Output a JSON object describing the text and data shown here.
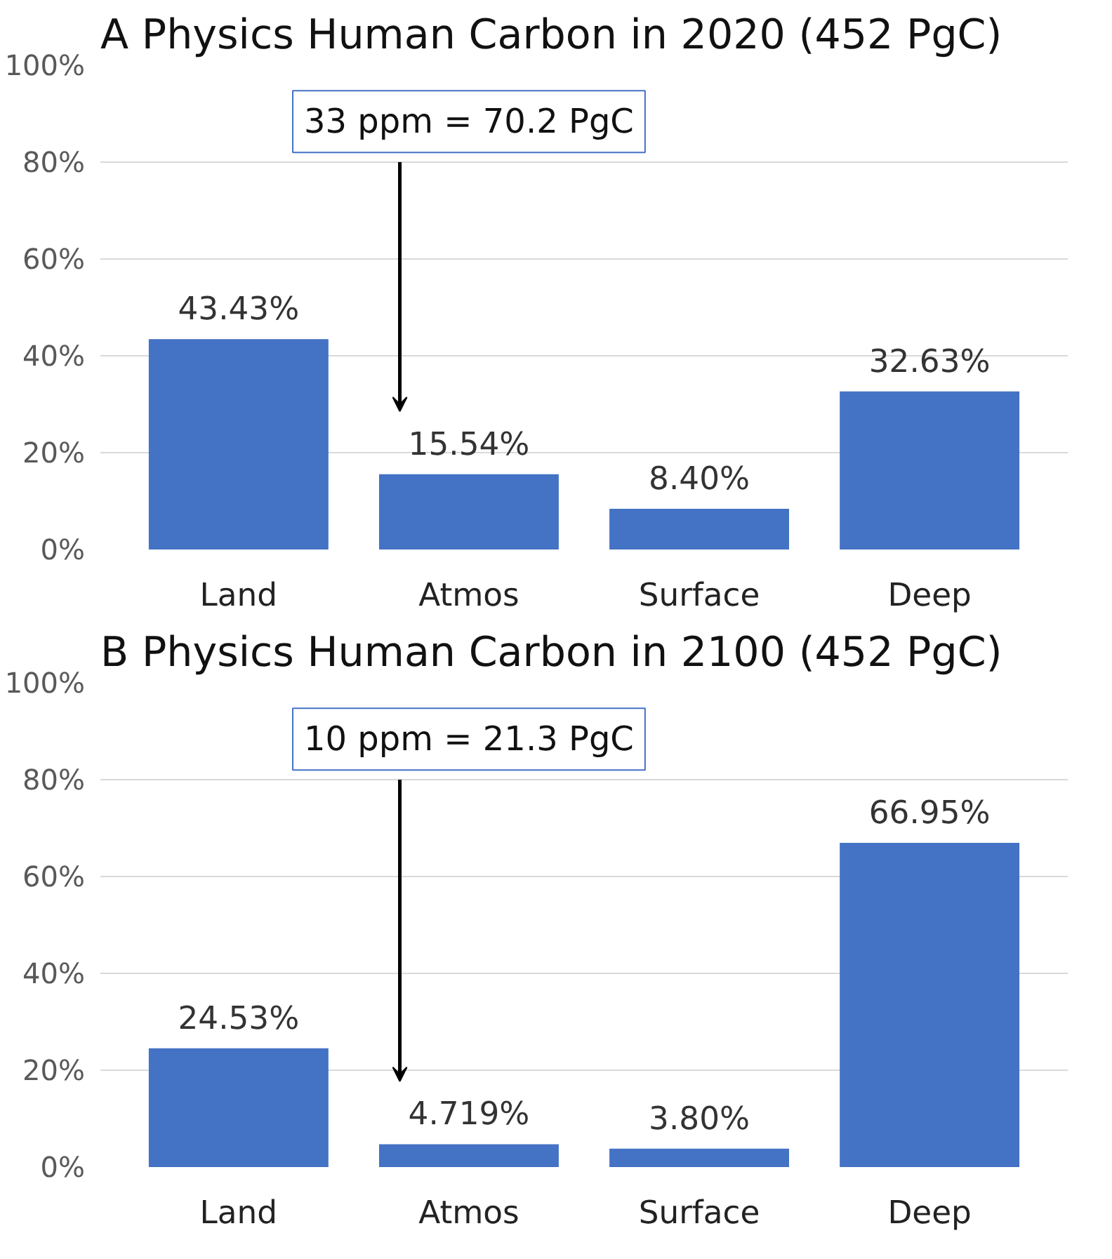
{
  "chart_data": [
    {
      "type": "bar",
      "title": "Physics Human Carbon in 2020  (452 PgC)",
      "categories": [
        "Land",
        "Atmos",
        "Surface",
        "Deep"
      ],
      "values": [
        43.43,
        15.54,
        8.4,
        32.63
      ],
      "value_labels": [
        "43.43%",
        "15.54%",
        "8.40%",
        "32.63%"
      ],
      "color": "#4472c4",
      "ylim": [
        0,
        100
      ],
      "yticks": [
        {
          "value": 0,
          "label": "0%"
        },
        {
          "value": 20,
          "label": "20%"
        },
        {
          "value": 40,
          "label": "40%"
        },
        {
          "value": 60,
          "label": "60%"
        },
        {
          "value": 80,
          "label": "80%"
        },
        {
          "value": 100,
          "label": "100%"
        }
      ],
      "grid": "y",
      "annotations": [
        "A",
        "33 ppm = 70.2 PgC"
      ]
    },
    {
      "type": "bar",
      "title": "Physics Human Carbon in 2100 (452 PgC)",
      "categories": [
        "Land",
        "Atmos",
        "Surface",
        "Deep"
      ],
      "values": [
        24.53,
        4.719,
        3.8,
        66.95
      ],
      "value_labels": [
        "24.53%",
        "4.719%",
        "3.80%",
        "66.95%"
      ],
      "color": "#4472c4",
      "ylim": [
        0,
        100
      ],
      "yticks": [
        {
          "value": 0,
          "label": "0%"
        },
        {
          "value": 20,
          "label": "20%"
        },
        {
          "value": 40,
          "label": "40%"
        },
        {
          "value": 60,
          "label": "60%"
        },
        {
          "value": 80,
          "label": "80%"
        },
        {
          "value": 100,
          "label": "100%"
        }
      ],
      "grid": "y",
      "annotations": [
        "B",
        "10 ppm = 21.3 PgC"
      ]
    }
  ]
}
